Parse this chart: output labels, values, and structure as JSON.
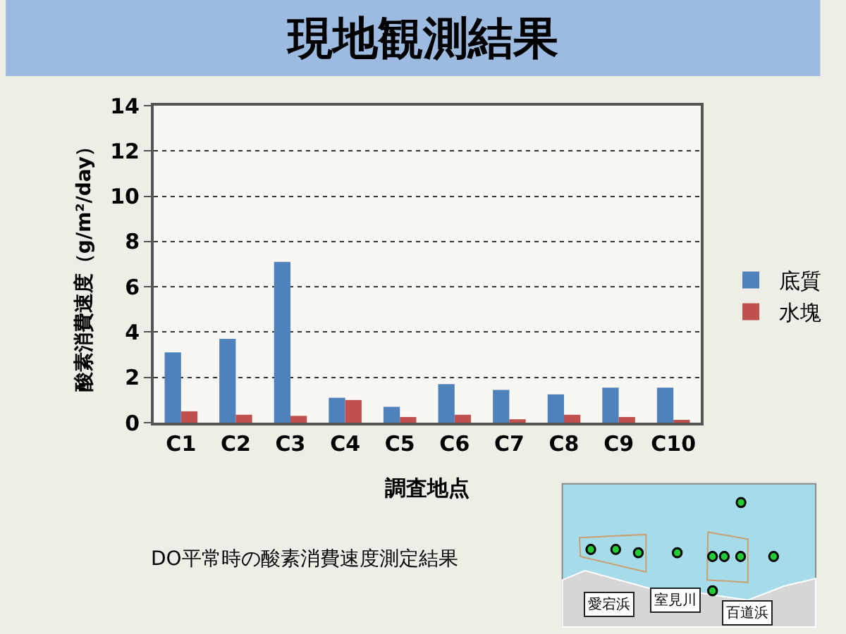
{
  "chart_data": {
    "type": "bar",
    "title": "現地観測結果",
    "xlabel": "調査地点",
    "ylabel": "酸素消費速度（g/m²/day）",
    "categories": [
      "C1",
      "C2",
      "C3",
      "C4",
      "C5",
      "C6",
      "C7",
      "C8",
      "C9",
      "C10"
    ],
    "series": [
      {
        "name": "底質",
        "color": "#4f81bd",
        "values": [
          3.1,
          3.7,
          7.1,
          1.1,
          0.7,
          1.7,
          1.45,
          1.25,
          1.55,
          1.55
        ]
      },
      {
        "name": "水塊",
        "color": "#c0504d",
        "values": [
          0.5,
          0.35,
          0.3,
          1.0,
          0.25,
          0.35,
          0.15,
          0.35,
          0.25,
          0.1
        ]
      }
    ],
    "ylim": [
      0,
      14
    ],
    "yticks": [
      0,
      2,
      4,
      6,
      8,
      10,
      12,
      14
    ],
    "grid": "y",
    "legend": "right",
    "annotations": [
      "DO平常時の酸素消費速度測定結果",
      "愛宕浜",
      "室見川",
      "百道浜"
    ]
  }
}
